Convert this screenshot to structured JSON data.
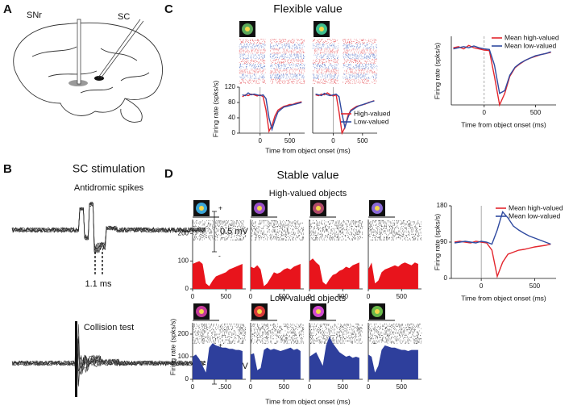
{
  "panels": {
    "A": "A",
    "B": "B",
    "C": "C",
    "D": "D"
  },
  "brain": {
    "snr": "SNr",
    "sc": "SC"
  },
  "stimulation": {
    "title": "SC stimulation",
    "antidromic": "Antidromic spikes",
    "collision": "Collision test",
    "scale": "0.5 mV",
    "plus": "+",
    "minus": "-",
    "latency": "1.1 ms"
  },
  "flexible": {
    "title": "Flexible value"
  },
  "stable": {
    "title": "Stable value",
    "high_objects": "High-valued objects",
    "low_objects": "Low-valued objects"
  },
  "chart_data": [
    {
      "type": "line",
      "x": [
        -300,
        -250,
        -200,
        -150,
        -100,
        -50,
        0,
        50,
        100,
        150,
        200,
        250,
        300,
        350,
        400,
        450,
        500,
        550,
        600,
        650,
        700
      ],
      "xlim": [
        -350,
        750
      ],
      "xticks": [
        0,
        500
      ],
      "ylim": [
        0,
        120
      ],
      "yticks": [
        0,
        40,
        80,
        120
      ],
      "ylabel": "Firing rate (spks/s)",
      "xlabel": "Time from object onset (ms)",
      "series": [
        {
          "color": "#e3262e",
          "values": [
            95,
            100,
            98,
            102,
            100,
            97,
            100,
            95,
            60,
            5,
            20,
            45,
            60,
            65,
            70,
            72,
            75,
            75,
            78,
            80,
            82
          ]
        },
        {
          "color": "#2f4aa0",
          "values": [
            100,
            98,
            105,
            100,
            102,
            100,
            98,
            100,
            90,
            40,
            10,
            35,
            55,
            62,
            68,
            70,
            72,
            74,
            76,
            78,
            80
          ]
        }
      ]
    },
    {
      "type": "line",
      "x": [
        -300,
        -250,
        -200,
        -150,
        -100,
        -50,
        0,
        50,
        100,
        150,
        200,
        250,
        300,
        350,
        400,
        450,
        500,
        550,
        600,
        650,
        700
      ],
      "xlim": [
        -350,
        750
      ],
      "xticks": [
        0,
        500
      ],
      "ylim": [
        0,
        120
      ],
      "series": [
        {
          "name": "High-valued",
          "color": "#e3262e",
          "values": [
            100,
            98,
            102,
            100,
            105,
            100,
            97,
            100,
            55,
            0,
            15,
            45,
            60,
            65,
            70,
            72,
            74,
            76,
            80,
            82,
            85
          ]
        },
        {
          "name": "Low-valued",
          "color": "#2f4aa0",
          "values": [
            102,
            100,
            98,
            104,
            100,
            98,
            100,
            102,
            95,
            50,
            15,
            40,
            58,
            63,
            68,
            72,
            74,
            77,
            79,
            82,
            84
          ]
        }
      ]
    },
    {
      "type": "line",
      "x": [
        -300,
        -250,
        -200,
        -150,
        -100,
        -50,
        0,
        50,
        100,
        150,
        200,
        250,
        300,
        350,
        400,
        450,
        500,
        550,
        600,
        650
      ],
      "xlim": [
        -320,
        700
      ],
      "xticks": [
        0,
        500
      ],
      "ylim": [
        0,
        120
      ],
      "ylabel": "Firing rate (spks/s)",
      "xlabel": "Time from object onset (ms)",
      "series": [
        {
          "name": "Mean high-valued",
          "color": "#e3262e",
          "values": [
            100,
            102,
            98,
            104,
            100,
            98,
            96,
            95,
            50,
            0,
            20,
            50,
            65,
            72,
            78,
            82,
            85,
            88,
            90,
            92
          ]
        },
        {
          "name": "Mean low-valued",
          "color": "#2f4aa0",
          "values": [
            98,
            100,
            102,
            100,
            103,
            100,
            98,
            97,
            70,
            20,
            25,
            52,
            66,
            73,
            78,
            82,
            86,
            88,
            90,
            93
          ]
        }
      ]
    },
    {
      "type": "area",
      "x": [
        0,
        50,
        100,
        150,
        200,
        250,
        300,
        350,
        400,
        450,
        500,
        550,
        600,
        650,
        700,
        750
      ],
      "xlim": [
        0,
        800
      ],
      "xticks": [
        0,
        500
      ],
      "ylim": [
        0,
        250
      ],
      "yticks": [
        0,
        100,
        200
      ],
      "color": "#e8141c",
      "values": [
        90,
        95,
        100,
        90,
        20,
        10,
        30,
        45,
        50,
        55,
        60,
        70,
        75,
        80,
        85,
        90
      ]
    },
    {
      "type": "area",
      "x": [
        0,
        50,
        100,
        150,
        200,
        250,
        300,
        350,
        400,
        450,
        500,
        550,
        600,
        650,
        700,
        750
      ],
      "xlim": [
        0,
        800
      ],
      "xticks": [
        0,
        500
      ],
      "ylim": [
        0,
        250
      ],
      "color": "#e8141c",
      "values": [
        80,
        75,
        85,
        70,
        10,
        20,
        40,
        60,
        55,
        60,
        70,
        75,
        70,
        80,
        85,
        90
      ]
    },
    {
      "type": "area",
      "x": [
        0,
        50,
        100,
        150,
        200,
        250,
        300,
        350,
        400,
        450,
        500,
        550,
        600,
        650,
        700,
        750
      ],
      "xlim": [
        0,
        800
      ],
      "xticks": [
        0,
        500
      ],
      "ylim": [
        0,
        250
      ],
      "color": "#e8141c",
      "values": [
        100,
        110,
        95,
        85,
        25,
        15,
        35,
        50,
        55,
        65,
        70,
        80,
        75,
        85,
        90,
        95
      ]
    },
    {
      "type": "area",
      "x": [
        0,
        50,
        100,
        150,
        200,
        250,
        300,
        350,
        400,
        450,
        500,
        550,
        600,
        650,
        700,
        750
      ],
      "xlim": [
        0,
        800
      ],
      "xticks": [
        0,
        500
      ],
      "ylim": [
        0,
        250
      ],
      "color": "#e8141c",
      "values": [
        70,
        95,
        20,
        30,
        60,
        70,
        75,
        80,
        85,
        80,
        90,
        95,
        90,
        85,
        95,
        90
      ]
    },
    {
      "type": "area",
      "x": [
        0,
        50,
        100,
        150,
        200,
        250,
        300,
        350,
        400,
        450,
        500,
        550,
        600,
        650,
        700,
        750
      ],
      "xlim": [
        0,
        800
      ],
      "xticks": [
        0,
        500
      ],
      "ylim": [
        0,
        250
      ],
      "yticks": [
        0,
        100,
        200
      ],
      "color": "#2e3f9c",
      "ylabel": "Firing rate (spks/s)",
      "xlabel": "Time from object onset (ms)",
      "values": [
        100,
        110,
        90,
        60,
        30,
        140,
        160,
        150,
        145,
        140,
        140,
        135,
        135,
        130,
        130,
        125
      ]
    },
    {
      "type": "area",
      "x": [
        0,
        50,
        100,
        150,
        200,
        250,
        300,
        350,
        400,
        450,
        500,
        550,
        600,
        650,
        700,
        750
      ],
      "xlim": [
        0,
        800
      ],
      "xticks": [
        0,
        500
      ],
      "ylim": [
        0,
        250
      ],
      "color": "#2e3f9c",
      "values": [
        110,
        115,
        40,
        50,
        130,
        140,
        130,
        135,
        130,
        125,
        130,
        135,
        140,
        130,
        135,
        125
      ]
    },
    {
      "type": "area",
      "x": [
        0,
        50,
        100,
        150,
        200,
        250,
        300,
        350,
        400,
        450,
        500,
        550,
        600,
        650,
        700,
        750
      ],
      "xlim": [
        0,
        800
      ],
      "xticks": [
        0,
        500
      ],
      "ylim": [
        0,
        250
      ],
      "color": "#2e3f9c",
      "values": [
        100,
        110,
        120,
        90,
        60,
        150,
        190,
        160,
        140,
        120,
        110,
        100,
        105,
        95,
        100,
        95
      ]
    },
    {
      "type": "area",
      "x": [
        0,
        50,
        100,
        150,
        200,
        250,
        300,
        350,
        400,
        450,
        500,
        550,
        600,
        650,
        700,
        750
      ],
      "xlim": [
        0,
        800
      ],
      "xticks": [
        0,
        500
      ],
      "ylim": [
        0,
        250
      ],
      "color": "#2e3f9c",
      "values": [
        110,
        100,
        30,
        60,
        130,
        150,
        145,
        140,
        140,
        135,
        130,
        130,
        125,
        130,
        130,
        130
      ]
    },
    {
      "type": "line",
      "x": [
        -250,
        -200,
        -150,
        -100,
        -50,
        0,
        50,
        100,
        150,
        200,
        250,
        300,
        350,
        400,
        450,
        500,
        550,
        600,
        650
      ],
      "xlim": [
        -280,
        700
      ],
      "xticks": [
        0,
        500
      ],
      "ylim": [
        0,
        180
      ],
      "yticks": [
        0,
        90,
        180
      ],
      "ylabel": "Firing rate (spks/s)",
      "xlabel": "Time from object onset (ms)",
      "series": [
        {
          "name": "Mean high-valued",
          "color": "#e3262e",
          "values": [
            90,
            92,
            90,
            88,
            92,
            90,
            88,
            70,
            5,
            40,
            60,
            65,
            70,
            72,
            75,
            78,
            80,
            82,
            85
          ]
        },
        {
          "name": "Mean low-valued",
          "color": "#2f4aa0",
          "values": [
            88,
            90,
            92,
            90,
            88,
            92,
            90,
            85,
            120,
            165,
            150,
            130,
            120,
            112,
            105,
            100,
            95,
            90,
            85
          ]
        }
      ]
    }
  ]
}
